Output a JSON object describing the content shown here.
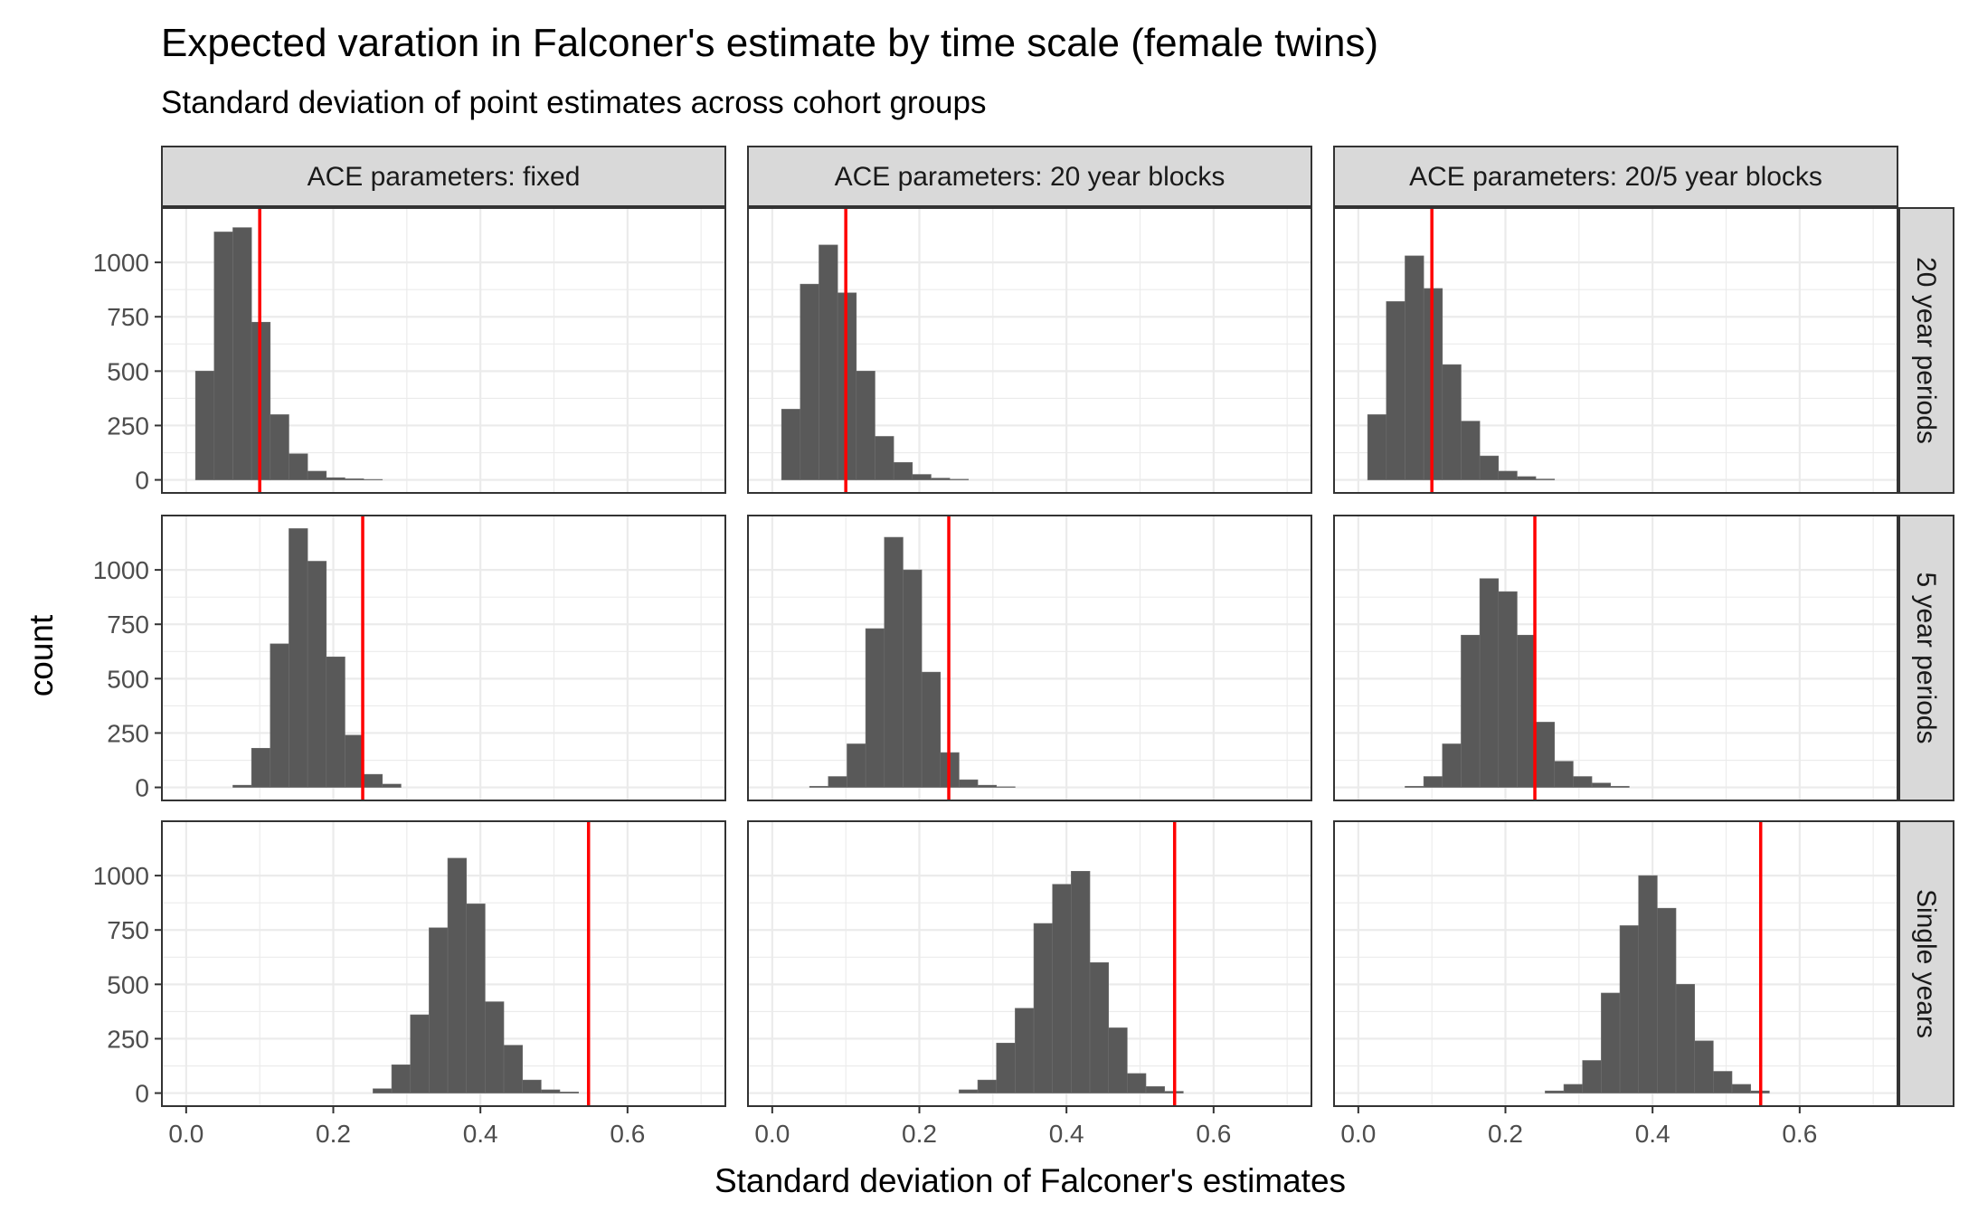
{
  "chart_data": {
    "type": "bar",
    "title": "Expected varation in Falconer's estimate by time scale (female twins)",
    "subtitle": "Standard deviation of point estimates across cohort groups",
    "xlabel": "Standard deviation of Falconer's estimates",
    "ylabel": "count",
    "xlim": [
      -0.033,
      0.733
    ],
    "ylim": [
      -60,
      1250
    ],
    "xticks": [
      0.0,
      0.2,
      0.4,
      0.6
    ],
    "xtick_labels": [
      "0.0",
      "0.2",
      "0.4",
      "0.6"
    ],
    "yticks": [
      0,
      250,
      500,
      750,
      1000
    ],
    "ytick_labels": [
      "0",
      "250",
      "500",
      "750",
      "1000"
    ],
    "bin_width": 0.0254,
    "grid": true,
    "bar_color": "#595959",
    "reference_line_color": "#ff0000",
    "columns": [
      "ACE parameters: fixed",
      "ACE parameters: 20 year blocks",
      "ACE parameters: 20/5 year blocks"
    ],
    "rows": [
      "20 year periods",
      "5 year periods",
      "Single years"
    ],
    "panels": [
      {
        "column": 0,
        "row": 0,
        "vline": 0.1,
        "bin_start": 0.0127,
        "counts": [
          500,
          1140,
          1160,
          725,
          300,
          120,
          40,
          10,
          5,
          2
        ]
      },
      {
        "column": 1,
        "row": 0,
        "vline": 0.1,
        "bin_start": 0.0127,
        "counts": [
          325,
          900,
          1080,
          860,
          500,
          200,
          80,
          25,
          8,
          3
        ]
      },
      {
        "column": 2,
        "row": 0,
        "vline": 0.1,
        "bin_start": 0.0127,
        "counts": [
          300,
          820,
          1030,
          880,
          530,
          270,
          110,
          40,
          15,
          4
        ]
      },
      {
        "column": 0,
        "row": 1,
        "vline": 0.24,
        "bin_start": 0.0635,
        "counts": [
          10,
          180,
          660,
          1190,
          1040,
          600,
          240,
          60,
          15
        ]
      },
      {
        "column": 1,
        "row": 1,
        "vline": 0.24,
        "bin_start": 0.0508,
        "counts": [
          5,
          50,
          200,
          730,
          1150,
          1000,
          530,
          160,
          35,
          10,
          3
        ]
      },
      {
        "column": 2,
        "row": 1,
        "vline": 0.24,
        "bin_start": 0.0635,
        "counts": [
          5,
          50,
          200,
          700,
          960,
          900,
          700,
          300,
          120,
          50,
          20,
          5
        ]
      },
      {
        "column": 0,
        "row": 2,
        "vline": 0.547,
        "bin_start": 0.254,
        "counts": [
          20,
          130,
          360,
          760,
          1080,
          870,
          420,
          220,
          60,
          15,
          5
        ]
      },
      {
        "column": 1,
        "row": 2,
        "vline": 0.547,
        "bin_start": 0.254,
        "counts": [
          15,
          60,
          230,
          390,
          780,
          960,
          1020,
          600,
          300,
          90,
          30,
          8
        ]
      },
      {
        "column": 2,
        "row": 2,
        "vline": 0.547,
        "bin_start": 0.254,
        "counts": [
          10,
          40,
          150,
          460,
          770,
          1000,
          850,
          500,
          240,
          100,
          40,
          10
        ]
      }
    ]
  }
}
